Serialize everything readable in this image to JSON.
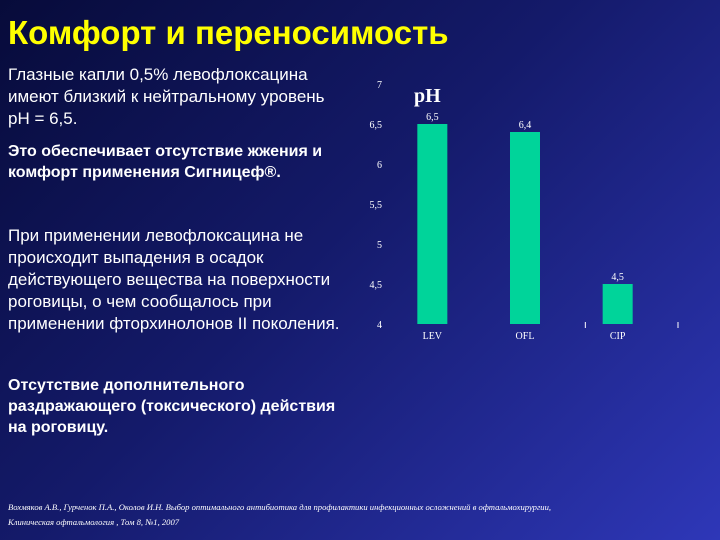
{
  "slide": {
    "title": "Комфорт и переносимость",
    "paragraphs": {
      "p1": "Глазные капли 0,5% левофлоксацина имеют близкий к нейтральному уровень рН = 6,5.",
      "p2": "Это обеспечивает отсутствие жжения и комфорт применения Сигницеф®.",
      "p3": "При применении левофлоксацина не происходит выпадения в осадок действующего вещества на поверхности роговицы, о чем сообщалось при применении фторхинолонов  II поколения.",
      "p4": "Отсутствие дополнительного раздражающего (токсического) действия на роговицу."
    },
    "reference": {
      "line1": "Вохмяков А.В., Гурченок П.А., Околов И.Н.  Выбор оптимального антибиотика для профилактики инфекционных осложнений в офтальмохирургии,",
      "line2": "Клиническая офтальмология , Том 8, №1, 2007"
    }
  },
  "chart_data": {
    "type": "bar",
    "title": "pH",
    "categories": [
      "LEV",
      "OFL",
      "CIP"
    ],
    "values": [
      6.5,
      6.4,
      4.5
    ],
    "value_labels": [
      "6,5",
      "6,4",
      "4,5"
    ],
    "ylim": [
      4,
      7
    ],
    "yticks": [
      4,
      4.5,
      5,
      5.5,
      6,
      6.5,
      7
    ],
    "ytick_labels": [
      "4",
      "4,5",
      "5",
      "5,5",
      "6",
      "6,5",
      "7"
    ],
    "bar_color": "#00d49a",
    "grid": false
  }
}
